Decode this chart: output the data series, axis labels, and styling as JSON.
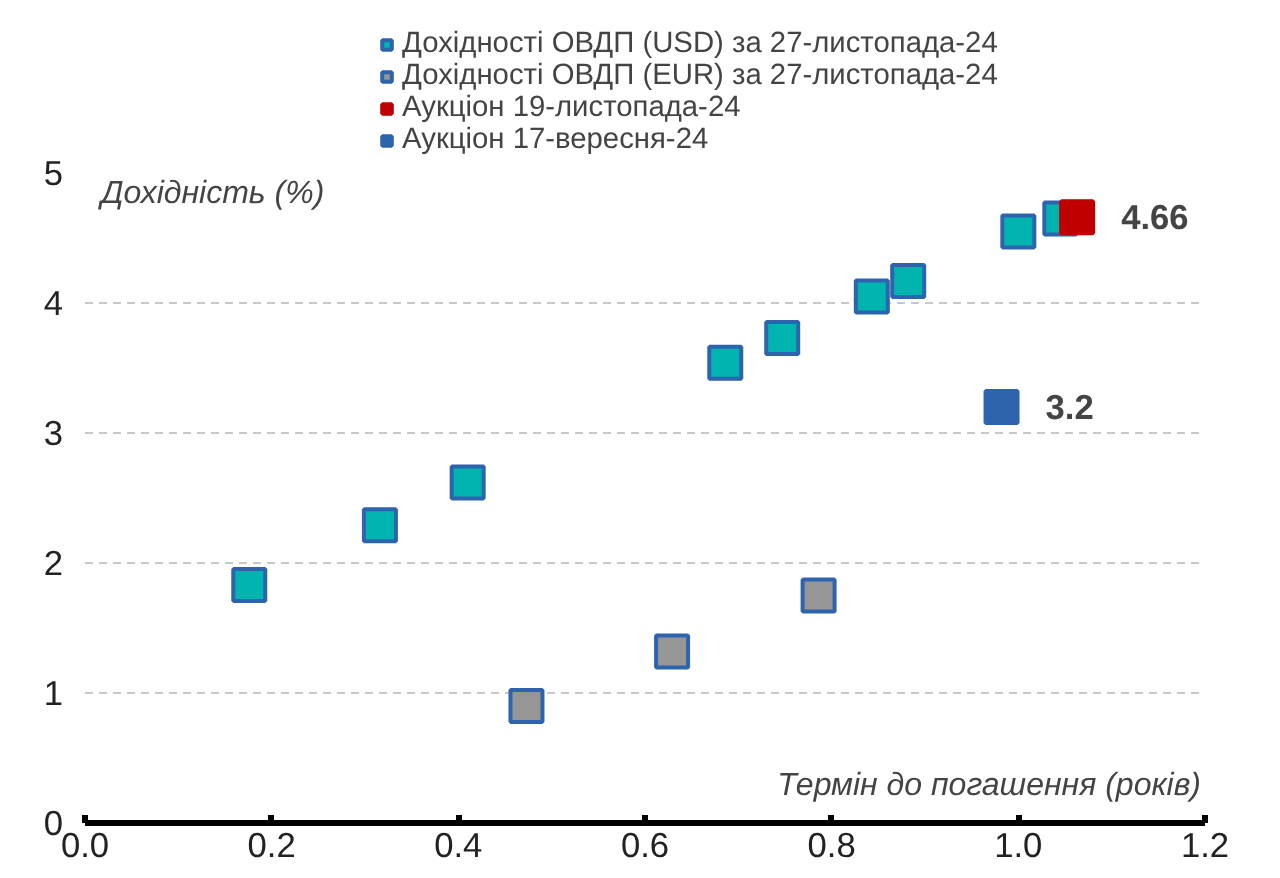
{
  "chart_data": {
    "type": "scatter",
    "xlabel": "Термін до погашення (років)",
    "ylabel": "Дохідність (%)",
    "xlim": [
      0,
      1.2
    ],
    "xticks": [
      {
        "value": 0,
        "label": "0.0"
      },
      0.2,
      0.4,
      0.6,
      0.8,
      {
        "value": 1,
        "label": "1.0"
      },
      1.2
    ],
    "ylim": [
      0,
      5
    ],
    "yticks": [
      0,
      1,
      2,
      3,
      4,
      5
    ],
    "grid": "y",
    "legend": "top",
    "marker": "square",
    "series": [
      {
        "name": "Дохідності ОВДП (USD) за 27-листопада-24",
        "color": "#00b4b0",
        "x": [
          0.176,
          0.316,
          0.41,
          0.686,
          0.747,
          0.843,
          0.882,
          1.0,
          1.045
        ],
        "values": [
          1.83,
          2.29,
          2.62,
          3.54,
          3.73,
          4.05,
          4.17,
          4.55,
          4.65
        ]
      },
      {
        "name": "Дохідності ОВДП (EUR) за 27-листопада-24",
        "color": "#969696",
        "x": [
          0.473,
          0.629,
          0.786
        ],
        "values": [
          0.9,
          1.32,
          1.75
        ]
      },
      {
        "name": "Аукціон 19-листопада-24",
        "color": "#c00000",
        "x": [
          1.063
        ],
        "values": [
          4.66
        ],
        "value_labels": [
          "4.66"
        ]
      },
      {
        "name": "Аукціон 17-вересня-24",
        "color": "#2e64ae",
        "x": [
          0.982
        ],
        "values": [
          3.2
        ],
        "value_labels": [
          "3.2"
        ]
      }
    ]
  }
}
